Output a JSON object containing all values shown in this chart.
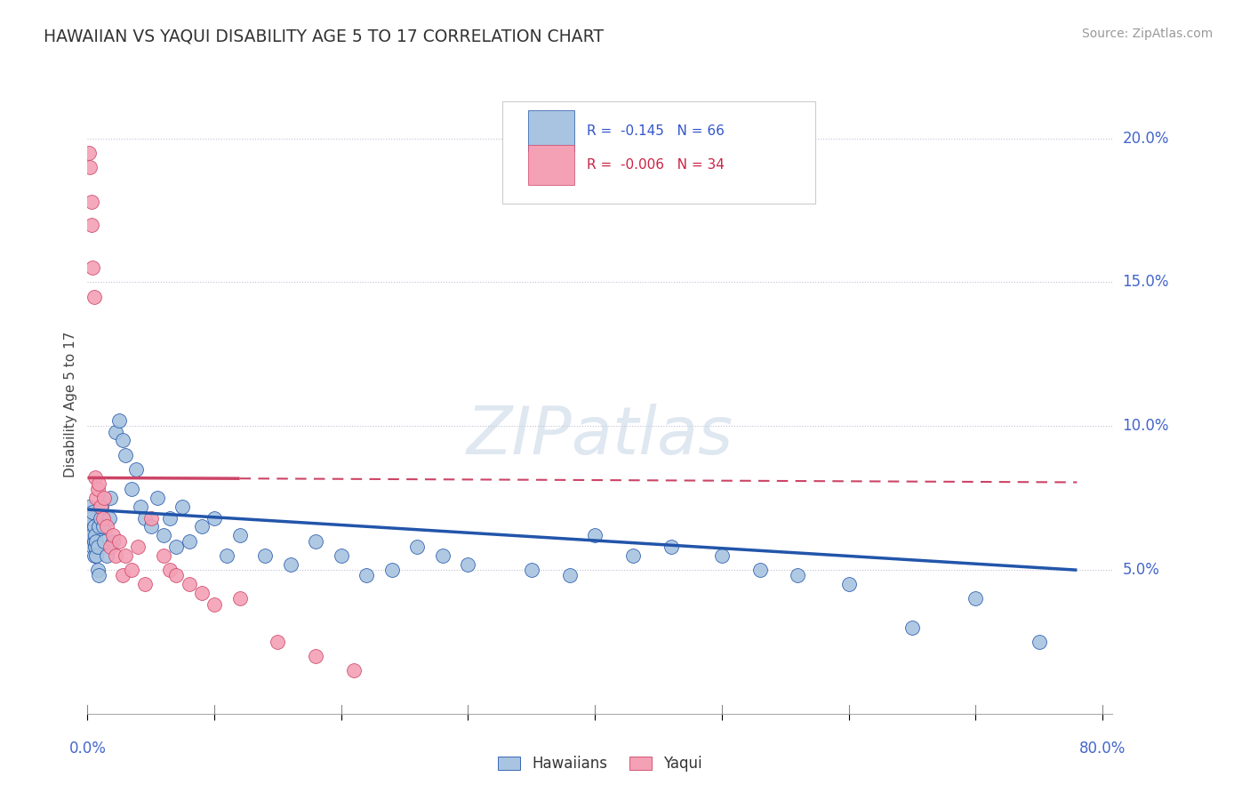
{
  "title": "HAWAIIAN VS YAQUI DISABILITY AGE 5 TO 17 CORRELATION CHART",
  "source": "Source: ZipAtlas.com",
  "ylabel": "Disability Age 5 to 17",
  "blue_color": "#a8c4e0",
  "pink_color": "#f4a0b5",
  "blue_line_color": "#2255aa",
  "pink_line_color": "#cc4466",
  "blue_r": "-0.145",
  "blue_n": "66",
  "pink_r": "-0.006",
  "pink_n": "34",
  "xlim": [
    0.0,
    0.8
  ],
  "ylim": [
    0.0,
    0.215
  ],
  "ytick_values": [
    0.05,
    0.1,
    0.15,
    0.2
  ],
  "ytick_labels": [
    "5.0%",
    "10.0%",
    "15.0%",
    "20.0%"
  ],
  "hawaiians_x": [
    0.001,
    0.002,
    0.002,
    0.003,
    0.003,
    0.004,
    0.004,
    0.005,
    0.005,
    0.005,
    0.006,
    0.006,
    0.007,
    0.007,
    0.008,
    0.008,
    0.009,
    0.009,
    0.01,
    0.011,
    0.012,
    0.013,
    0.015,
    0.017,
    0.018,
    0.02,
    0.022,
    0.025,
    0.028,
    0.03,
    0.035,
    0.038,
    0.042,
    0.045,
    0.05,
    0.055,
    0.06,
    0.065,
    0.07,
    0.075,
    0.08,
    0.09,
    0.1,
    0.11,
    0.12,
    0.14,
    0.16,
    0.18,
    0.2,
    0.22,
    0.24,
    0.26,
    0.28,
    0.3,
    0.35,
    0.38,
    0.4,
    0.43,
    0.46,
    0.5,
    0.53,
    0.56,
    0.6,
    0.65,
    0.7,
    0.75
  ],
  "hawaiians_y": [
    0.072,
    0.065,
    0.063,
    0.068,
    0.062,
    0.058,
    0.07,
    0.055,
    0.06,
    0.065,
    0.058,
    0.062,
    0.055,
    0.06,
    0.05,
    0.058,
    0.048,
    0.065,
    0.068,
    0.072,
    0.065,
    0.06,
    0.055,
    0.068,
    0.075,
    0.06,
    0.098,
    0.102,
    0.095,
    0.09,
    0.078,
    0.085,
    0.072,
    0.068,
    0.065,
    0.075,
    0.062,
    0.068,
    0.058,
    0.072,
    0.06,
    0.065,
    0.068,
    0.055,
    0.062,
    0.055,
    0.052,
    0.06,
    0.055,
    0.048,
    0.05,
    0.058,
    0.055,
    0.052,
    0.05,
    0.048,
    0.062,
    0.055,
    0.058,
    0.055,
    0.05,
    0.048,
    0.045,
    0.03,
    0.04,
    0.025
  ],
  "yaqui_x": [
    0.001,
    0.002,
    0.003,
    0.003,
    0.004,
    0.005,
    0.006,
    0.007,
    0.008,
    0.009,
    0.01,
    0.012,
    0.013,
    0.015,
    0.018,
    0.02,
    0.022,
    0.025,
    0.028,
    0.03,
    0.035,
    0.04,
    0.045,
    0.05,
    0.06,
    0.065,
    0.07,
    0.08,
    0.09,
    0.1,
    0.12,
    0.15,
    0.18,
    0.21
  ],
  "yaqui_y": [
    0.195,
    0.19,
    0.178,
    0.17,
    0.155,
    0.145,
    0.082,
    0.075,
    0.078,
    0.08,
    0.072,
    0.068,
    0.075,
    0.065,
    0.058,
    0.062,
    0.055,
    0.06,
    0.048,
    0.055,
    0.05,
    0.058,
    0.045,
    0.068,
    0.055,
    0.05,
    0.048,
    0.045,
    0.042,
    0.038,
    0.04,
    0.025,
    0.02,
    0.015
  ]
}
